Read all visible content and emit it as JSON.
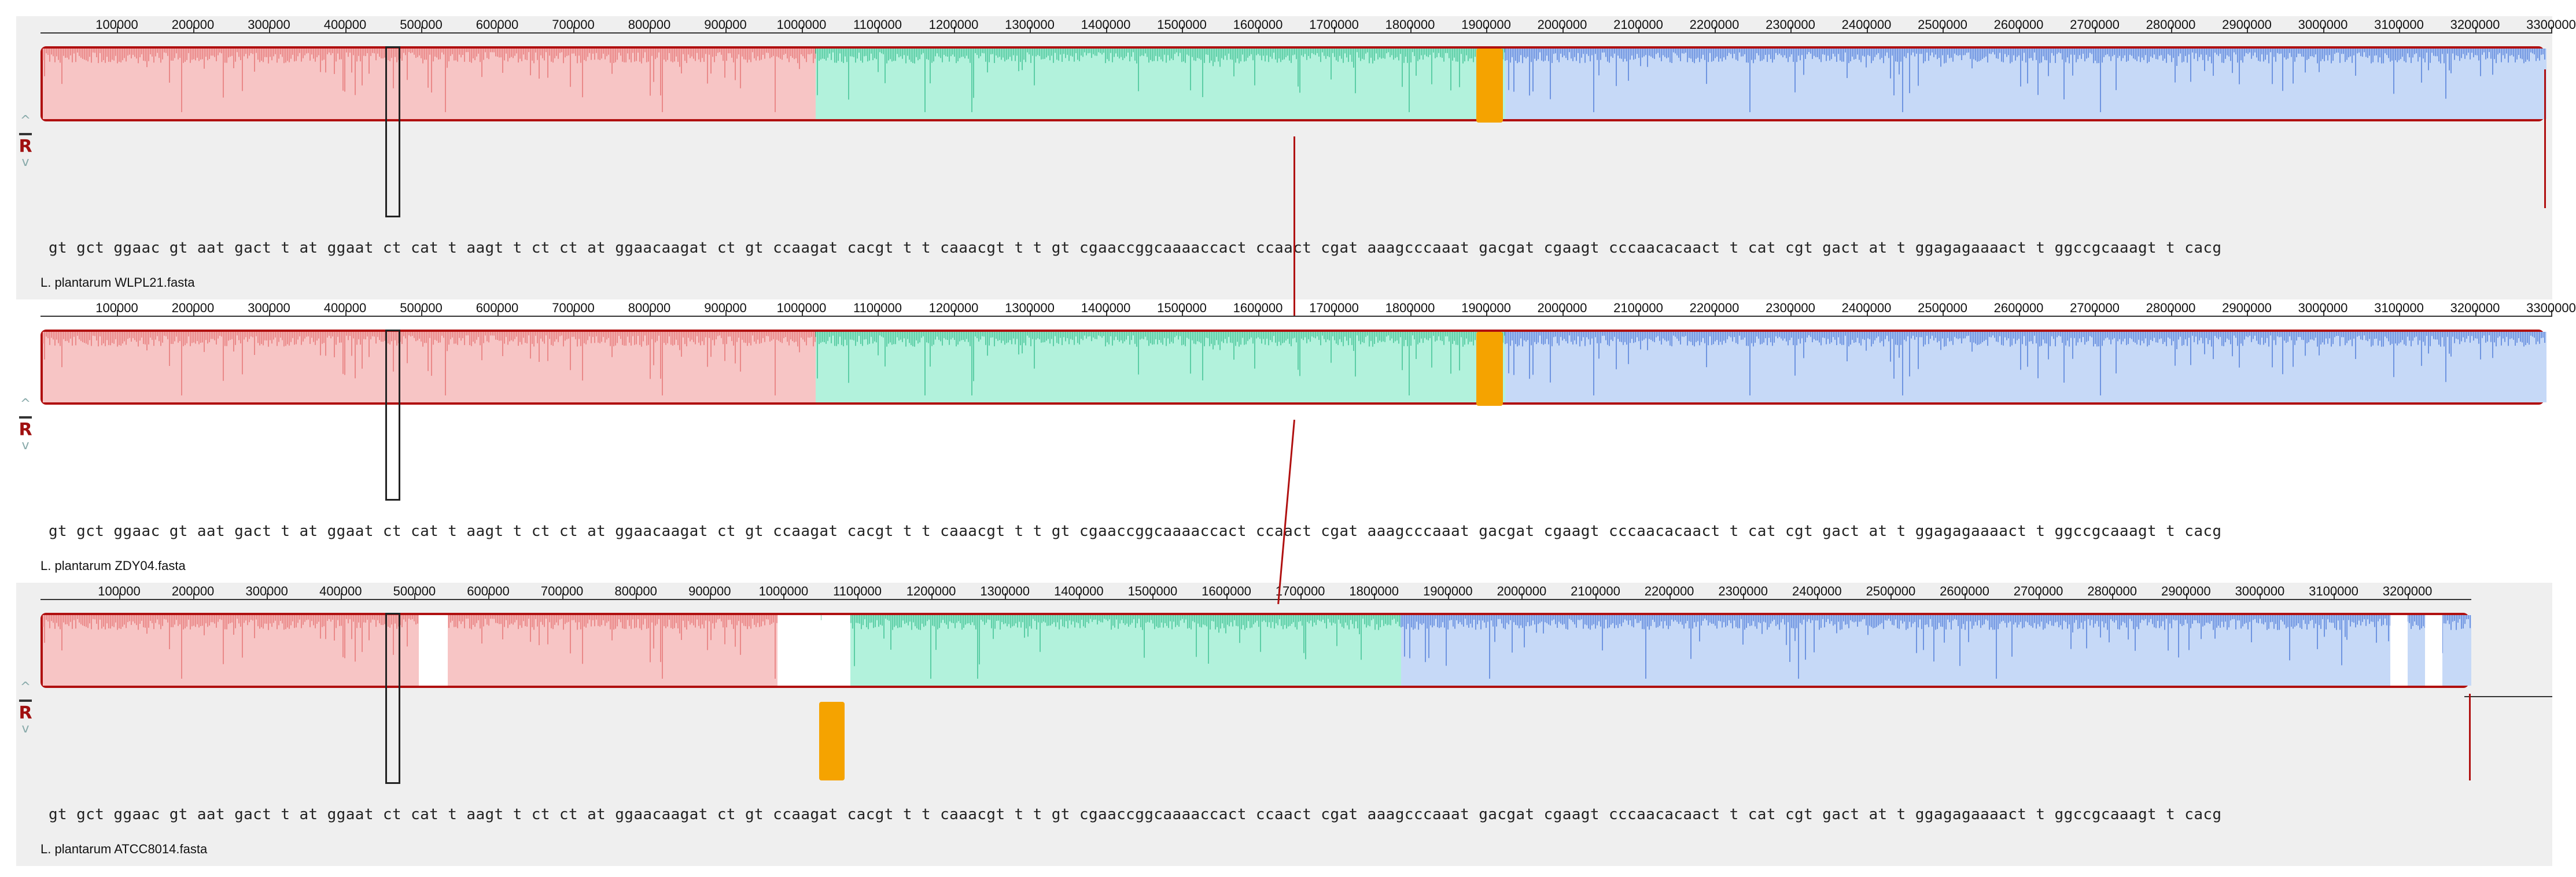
{
  "ruler": {
    "labels": [
      "100000",
      "200000",
      "300000",
      "400000",
      "500000",
      "600000",
      "700000",
      "800000",
      "900000",
      "1000000",
      "1100000",
      "1200000",
      "1300000",
      "1400000",
      "1500000",
      "1600000",
      "1700000",
      "1800000",
      "1900000",
      "2000000",
      "2100000",
      "2200000",
      "2300000",
      "2400000",
      "2500000",
      "2600000",
      "2700000",
      "2800000",
      "2900000",
      "3000000",
      "3100000",
      "3200000",
      "3300000"
    ]
  },
  "ruler_short": {
    "labels": [
      "100000",
      "200000",
      "300000",
      "400000",
      "500000",
      "600000",
      "700000",
      "800000",
      "900000",
      "1000000",
      "1100000",
      "1200000",
      "1300000",
      "1400000",
      "1500000",
      "1600000",
      "1700000",
      "1800000",
      "1900000",
      "2000000",
      "2100000",
      "2200000",
      "2300000",
      "2400000",
      "2500000",
      "2600000",
      "2700000",
      "2800000",
      "2900000",
      "3000000",
      "3100000",
      "3200000"
    ]
  },
  "controls": {
    "up": "^",
    "minus": "-",
    "r": "R",
    "down": "v"
  },
  "colors": {
    "lcb1": "#f7c5c5",
    "lcb1_line": "#e05a5a",
    "lcb2": "#b2f2dc",
    "lcb2_line": "#18b07a",
    "lcb3": "#c6d9f7",
    "lcb3_line": "#2a5fcf",
    "track_border": "#b01010",
    "orange": "#f5a300"
  },
  "genomes": [
    {
      "name": "L. plantarum WLPL21.fasta",
      "sequence": "gt gct ggaac gt aat gact t at ggaat ct cat t aagt t ct ct at ggaacaagat ct gt ccaagat cacgt t t caaacgt t t gt cgaaccggcaaaaccact ccaact cgat aaagcccaaat gacgat cgaagt cccaacacaact t cat cgt gact at t ggagagaaaact t ggccgcaaagt t cacg"
    },
    {
      "name": "L. plantarum ZDY04.fasta",
      "sequence": "gt gct ggaac gt aat gact t at ggaat ct cat t aagt t ct ct at ggaacaagat ct gt ccaagat cacgt t t caaacgt t t gt cgaaccggcaaaaccact ccaact cgat aaagcccaaat gacgat cgaagt cccaacacaact t cat cgt gact at t ggagagaaaact t ggccgcaaagt t cacg"
    },
    {
      "name": "L. plantarum ATCC8014.fasta",
      "sequence": "gt gct ggaac gt aat gact t at ggaat ct cat t aagt t ct ct at ggaacaagat ct gt ccaagat cacgt t t caaacgt t t gt cgaaccggcaaaaccact ccaact cgat aaagcccaaat gacgat cgaagt cccaacacaact t cat cgt gact at t ggagagaaaact t ggccgcaaagt t cacg"
    }
  ]
}
